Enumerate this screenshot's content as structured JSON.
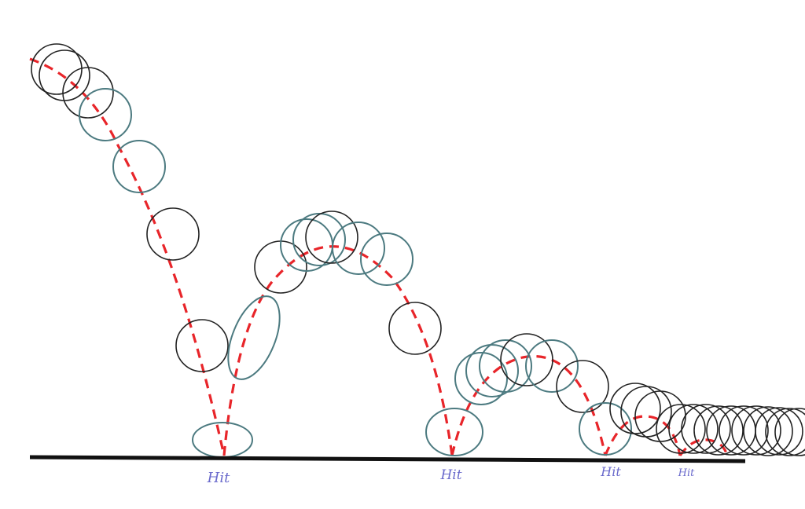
{
  "labels": [
    "Hit",
    "Hit",
    "Hit",
    "Hit"
  ]
}
